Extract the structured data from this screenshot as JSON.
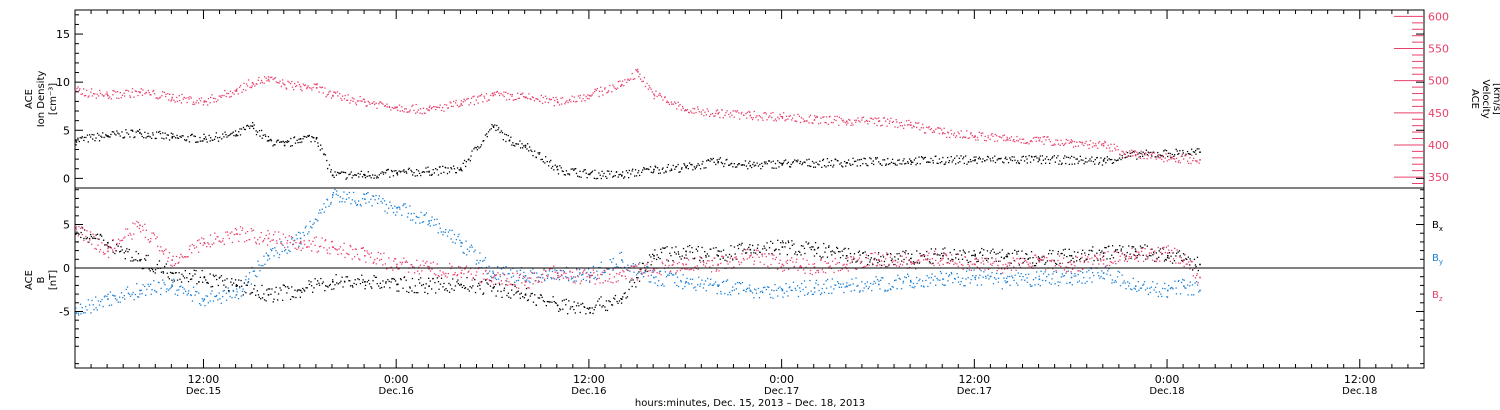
{
  "chart_data": [
    {
      "type": "scatter",
      "panel": "top",
      "ylabel_left": [
        "ACE",
        "Ion Density",
        "[cm⁻³]"
      ],
      "ylabel_right": [
        "ACE",
        "Velocity",
        "[km/s]"
      ],
      "ylim_left": [
        -1,
        17.5
      ],
      "yticks_left": [
        0,
        5,
        10,
        15
      ],
      "ylim_right": [
        333,
        610
      ],
      "yticks_right": [
        350,
        400,
        450,
        500,
        550,
        600
      ],
      "series": [
        {
          "axis": "left",
          "color": "#000000",
          "x": [
            0,
            2,
            4,
            6,
            8,
            10,
            11,
            12,
            13,
            14,
            15,
            16,
            18,
            20,
            22,
            24,
            26,
            27,
            28,
            30,
            32,
            34,
            36,
            38,
            40,
            42,
            44,
            48,
            52,
            56,
            60,
            64,
            66,
            70
          ],
          "values": [
            4.0,
            4.5,
            4.8,
            4.3,
            4.2,
            4.6,
            5.5,
            4.0,
            3.5,
            4.2,
            4.3,
            0.4,
            0.4,
            0.6,
            0.8,
            1.0,
            5.5,
            4.0,
            3.5,
            1.0,
            0.5,
            0.4,
            1.0,
            1.2,
            1.8,
            1.4,
            1.6,
            1.7,
            1.9,
            2.0,
            2.0,
            1.9,
            2.5,
            2.8
          ]
        },
        {
          "axis": "right",
          "color": "#e8406a",
          "x": [
            0,
            2,
            4,
            6,
            8,
            10,
            11,
            12,
            13,
            14,
            15,
            16,
            18,
            20,
            22,
            24,
            26,
            28,
            30,
            32,
            34,
            35,
            36,
            38,
            40,
            42,
            44,
            46,
            48,
            50,
            52,
            54,
            56,
            58,
            60,
            62,
            64,
            66,
            70
          ],
          "values": [
            485,
            478,
            483,
            475,
            468,
            485,
            498,
            503,
            495,
            492,
            490,
            478,
            468,
            460,
            455,
            465,
            478,
            475,
            468,
            478,
            495,
            515,
            480,
            455,
            450,
            447,
            445,
            440,
            438,
            438,
            432,
            420,
            415,
            410,
            408,
            405,
            400,
            385,
            378
          ]
        }
      ]
    },
    {
      "type": "scatter",
      "panel": "bottom",
      "ylabel_left": [
        "ACE",
        "B",
        "[nT]"
      ],
      "ylim": [
        -11.5,
        9.2
      ],
      "yticks": [
        -5,
        0,
        5
      ],
      "zero_line": true,
      "legend": [
        {
          "label": "B",
          "sub": "x",
          "color": "#000000"
        },
        {
          "label": "B",
          "sub": "y",
          "color": "#1a7fd4"
        },
        {
          "label": "B",
          "sub": "z",
          "color": "#e8406a"
        }
      ],
      "series": [
        {
          "name": "Bx",
          "color": "#000000",
          "x": [
            0,
            2,
            4,
            6,
            8,
            10,
            12,
            14,
            16,
            18,
            20,
            22,
            24,
            26,
            28,
            30,
            32,
            34,
            36,
            38,
            40,
            42,
            44,
            46,
            48,
            50,
            52,
            54,
            56,
            58,
            60,
            62,
            64,
            66,
            68,
            69,
            70
          ],
          "values": [
            4.0,
            3.0,
            1.0,
            -0.5,
            -1.0,
            -2.0,
            -3.0,
            -2.5,
            -1.5,
            -1.5,
            -1.8,
            -2.0,
            -1.8,
            -2.2,
            -3.0,
            -4.2,
            -4.5,
            -3.5,
            1.5,
            2.0,
            1.5,
            2.2,
            2.5,
            2.2,
            1.5,
            1.0,
            1.2,
            1.5,
            1.5,
            1.4,
            1.2,
            1.5,
            1.8,
            2.0,
            1.5,
            1.0,
            0.5
          ]
        },
        {
          "name": "By",
          "color": "#1a7fd4",
          "x": [
            0,
            2,
            4,
            6,
            8,
            10,
            12,
            14,
            16,
            18,
            20,
            22,
            24,
            26,
            28,
            30,
            32,
            34,
            36,
            38,
            40,
            42,
            44,
            46,
            48,
            50,
            52,
            54,
            56,
            58,
            60,
            62,
            64,
            66,
            68,
            69,
            70
          ],
          "values": [
            -5.0,
            -3.5,
            -2.5,
            -2.0,
            -3.5,
            -3.0,
            1.5,
            3.5,
            8.5,
            8.0,
            7.0,
            5.5,
            3.0,
            -0.5,
            -0.8,
            -0.5,
            -0.8,
            1.0,
            -1.0,
            -1.5,
            -2.0,
            -2.5,
            -2.5,
            -2.2,
            -2.0,
            -1.8,
            -1.5,
            -1.2,
            -1.0,
            -1.5,
            -1.2,
            -1.0,
            -0.5,
            -2.0,
            -2.5,
            -2.0,
            -2.5
          ]
        },
        {
          "name": "Bz",
          "color": "#e8406a",
          "x": [
            0,
            2,
            4,
            6,
            8,
            10,
            12,
            14,
            16,
            18,
            20,
            22,
            24,
            26,
            28,
            30,
            32,
            34,
            36,
            38,
            40,
            42,
            44,
            46,
            48,
            50,
            52,
            54,
            56,
            58,
            60,
            62,
            64,
            66,
            68,
            69,
            70
          ],
          "values": [
            4.5,
            2.0,
            5.0,
            1.0,
            3.0,
            4.0,
            3.5,
            3.0,
            2.5,
            1.5,
            0.5,
            0.0,
            -0.5,
            -1.0,
            -1.5,
            -0.5,
            -1.0,
            -0.8,
            0.0,
            0.5,
            0.5,
            1.5,
            0.5,
            0.2,
            0.5,
            1.0,
            0.8,
            1.2,
            0.5,
            0.3,
            0.8,
            0.5,
            1.0,
            1.5,
            1.8,
            1.0,
            -1.0
          ]
        }
      ]
    }
  ],
  "x_axis": {
    "range_hours": [
      0,
      84
    ],
    "major_ticks": [
      {
        "time": "12:00",
        "day": "Dec.15"
      },
      {
        "time": "0:00",
        "day": "Dec.16"
      },
      {
        "time": "12:00",
        "day": "Dec.16"
      },
      {
        "time": "0:00",
        "day": "Dec.17"
      },
      {
        "time": "12:00",
        "day": "Dec.17"
      },
      {
        "time": "0:00",
        "day": "Dec.18"
      },
      {
        "time": "12:00",
        "day": "Dec.18"
      }
    ],
    "title": "hours:minutes, Dec. 15, 2013 – Dec. 18, 2013"
  },
  "colors": {
    "black": "#000000",
    "blue": "#1a7fd4",
    "pink": "#e8406a"
  }
}
